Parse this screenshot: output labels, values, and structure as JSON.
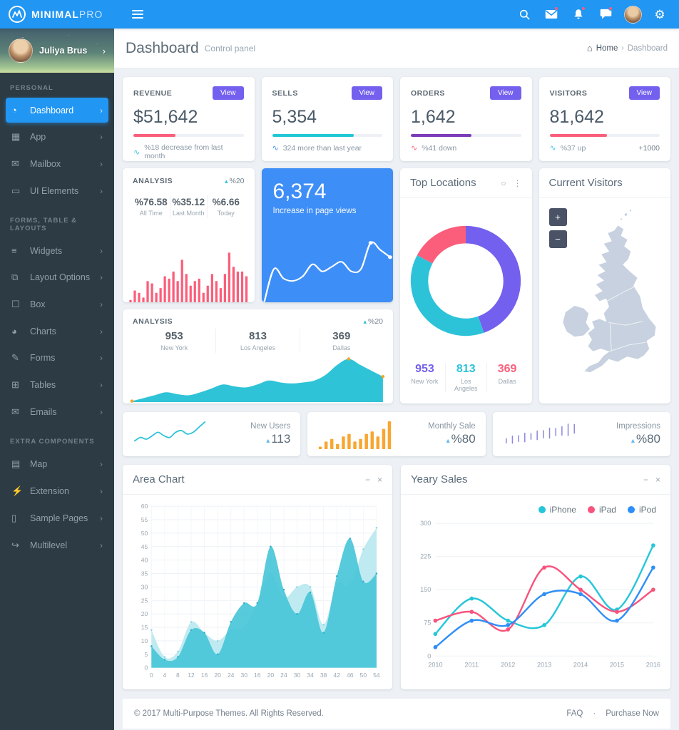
{
  "topbar": {
    "brand_bold": "MINIMAL",
    "brand_light": "PRO"
  },
  "ui": {
    "chevron": "›",
    "caret_up": "▴",
    "trend": "∿",
    "home": "⌂",
    "minimize": "−",
    "close": "×",
    "circle": "○",
    "dots": "⋮",
    "gear": "⚙"
  },
  "sidebar": {
    "user": {
      "name": "Juliya Brus"
    },
    "sections": [
      {
        "label": "PERSONAL",
        "items": [
          {
            "label": "Dashboard",
            "glyph": "◔",
            "active": true
          },
          {
            "label": "App",
            "glyph": "▦"
          },
          {
            "label": "Mailbox",
            "glyph": "✉"
          },
          {
            "label": "UI Elements",
            "glyph": "▭"
          }
        ]
      },
      {
        "label": "FORMS, TABLE & LAYOUTS",
        "items": [
          {
            "label": "Widgets",
            "glyph": "≡"
          },
          {
            "label": "Layout Options",
            "glyph": "⧉"
          },
          {
            "label": "Box",
            "glyph": "☐"
          },
          {
            "label": "Charts",
            "glyph": "◕"
          },
          {
            "label": "Forms",
            "glyph": "✎"
          },
          {
            "label": "Tables",
            "glyph": "⊞"
          },
          {
            "label": "Emails",
            "glyph": "✉"
          }
        ]
      },
      {
        "label": "EXTRA COMPONENTS",
        "items": [
          {
            "label": "Map",
            "glyph": "▤"
          },
          {
            "label": "Extension",
            "glyph": "⚡"
          },
          {
            "label": "Sample Pages",
            "glyph": "▯"
          },
          {
            "label": "Multilevel",
            "glyph": "↪"
          }
        ]
      }
    ]
  },
  "header": {
    "title": "Dashboard",
    "subtitle": "Control panel",
    "breadcrumb": {
      "home": "Home",
      "separator": "›",
      "current": "Dashboard"
    }
  },
  "stat_cards": [
    {
      "title": "REVENUE",
      "action": "View",
      "value": "$51,642",
      "progress": "38%",
      "accent": "#fb5e7a",
      "note": "%18 decrease from last month",
      "note_icon_color": "#3ec6e0",
      "extra": ""
    },
    {
      "title": "SELLS",
      "action": "View",
      "value": "5,354",
      "progress": "74%",
      "accent": "#22c7d5",
      "note": "324 more than last year",
      "note_icon_color": "#3e8ef7",
      "extra": ""
    },
    {
      "title": "ORDERS",
      "action": "View",
      "value": "1,642",
      "progress": "55%",
      "accent": "#7a3cb8",
      "note": "%41 down",
      "note_icon_color": "#fb5e7a",
      "extra": ""
    },
    {
      "title": "VISITORS",
      "action": "View",
      "value": "81,642",
      "progress": "52%",
      "accent": "#fb5e7a",
      "note": "%37 up",
      "note_icon_color": "#3ec6e0",
      "extra": "+1000"
    }
  ],
  "analysis1": {
    "title": "ANALYSIS",
    "badge": "%20",
    "stats": [
      {
        "value": "%76.58",
        "label": "All Time"
      },
      {
        "value": "%35.12",
        "label": "Last Month"
      },
      {
        "value": "%6.66",
        "label": "Today"
      }
    ]
  },
  "page_views": {
    "value": "6,374",
    "label": "Increase in page views",
    "bg": "#3e8ef7"
  },
  "top_locations": {
    "title": "Top Locations",
    "stats": [
      {
        "value": "953",
        "label": "New York",
        "color": "#7460ee"
      },
      {
        "value": "813",
        "label": "Los Angeles",
        "color": "#2cc3d8"
      },
      {
        "value": "369",
        "label": "Dallas",
        "color": "#fb5e7a"
      }
    ]
  },
  "current_visitors": {
    "title": "Current Visitors",
    "zoom_in": "+",
    "zoom_out": "−"
  },
  "analysis2": {
    "title": "ANALYSIS",
    "badge": "%20",
    "stats": [
      {
        "value": "953",
        "label": "New York"
      },
      {
        "value": "813",
        "label": "Los Angeles"
      },
      {
        "value": "369",
        "label": "Dallas"
      }
    ]
  },
  "mini_cards": [
    {
      "label": "New Users",
      "value": "113"
    },
    {
      "label": "Monthly Sale",
      "value": "%80"
    },
    {
      "label": "Impressions",
      "value": "%80"
    }
  ],
  "area_chart_card": {
    "title": "Area Chart"
  },
  "yearly_card": {
    "title": "Yeary Sales",
    "legend": [
      {
        "label": "iPhone",
        "color": "#26c6da"
      },
      {
        "label": "iPad",
        "color": "#f8537c"
      },
      {
        "label": "iPod",
        "color": "#2e8ef7"
      }
    ]
  },
  "footer": {
    "copyright": "© 2017 Multi-Purpose Themes. All Rights Reserved.",
    "faq": "FAQ",
    "dot": "·",
    "purchase": "Purchase Now"
  },
  "chart_data": [
    {
      "id": "analysis_bars",
      "type": "bar",
      "color": "#fb5e7a",
      "values": [
        1,
        5,
        4,
        2,
        9,
        8,
        4,
        6,
        11,
        10,
        13,
        9,
        18,
        12,
        7,
        9,
        10,
        4,
        7,
        12,
        9,
        6,
        12,
        21,
        15,
        13,
        13,
        11
      ],
      "title": "Analysis daily bars",
      "ylim": [
        0,
        22
      ]
    },
    {
      "id": "pageviews_line",
      "type": "line",
      "color": "#ffffff",
      "stroke_width": 2,
      "values": [
        0,
        14,
        10,
        9,
        11,
        16,
        13,
        15,
        17,
        13,
        14,
        25,
        22,
        19
      ],
      "markers": [
        11,
        13
      ],
      "marker_color": "#ffffff",
      "marker_r": 2.6,
      "title": "Increase in page views",
      "ylim": [
        0,
        27
      ]
    },
    {
      "id": "locations_donut",
      "type": "pie",
      "labels": [
        "New York",
        "Los Angeles",
        "Dallas"
      ],
      "values": [
        953,
        813,
        369
      ],
      "colors": [
        "#7460ee",
        "#2cc3d8",
        "#fb5e7a"
      ],
      "donut_width": 26,
      "title": "Top Locations"
    },
    {
      "id": "analysis_area",
      "type": "line",
      "color": "#2fc3d7",
      "stroke": false,
      "fill": true,
      "fill_color": "#2fc3d7",
      "values": [
        0.5,
        2,
        3.5,
        5,
        4,
        3.5,
        5,
        7,
        9,
        8,
        7.5,
        9,
        11,
        10,
        9.5,
        10,
        11,
        14,
        19,
        22,
        19,
        16,
        13
      ],
      "markers": [
        0,
        19,
        22
      ],
      "marker_color": "#f5a623",
      "marker_r": 2.2,
      "title": "Analysis area trend",
      "ylim": [
        0,
        24
      ]
    },
    {
      "id": "newusers_spark",
      "type": "line",
      "color": "#2cc3d8",
      "stroke_width": 1.8,
      "values": [
        4,
        6,
        5,
        7,
        9,
        7,
        6,
        9,
        10,
        8,
        9,
        12,
        15
      ],
      "title": "New Users sparkline"
    },
    {
      "id": "monthly_spark",
      "type": "bar",
      "color": "#f8a632",
      "values": [
        1,
        3,
        4,
        2,
        5,
        6,
        3,
        4,
        6,
        7,
        5,
        8,
        11
      ],
      "title": "Monthly Sale sparkline"
    },
    {
      "id": "impressions_ticks",
      "type": "ticks",
      "color": "#8f88e0",
      "values": [
        3,
        5,
        4,
        6,
        4,
        6,
        5,
        7,
        5,
        6,
        8,
        6
      ],
      "title": "Impressions sparkline"
    },
    {
      "id": "area_chart",
      "type": "area-multi",
      "title": "Area Chart",
      "x_labels": [
        "0",
        "4",
        "8",
        "12",
        "16",
        "20",
        "24",
        "30",
        "16",
        "20",
        "24",
        "30",
        "34",
        "38",
        "42",
        "46",
        "50",
        "54"
      ],
      "y_ticks": [
        0,
        5,
        10,
        15,
        20,
        25,
        30,
        35,
        40,
        45,
        50,
        55,
        60
      ],
      "ymax": 60,
      "grid": true,
      "series": [
        {
          "name": "series-light",
          "color": "#b9e8f0",
          "opacity": 0.9,
          "dot_color": "#8fd9e6",
          "values": [
            14,
            4,
            6,
            17,
            13,
            10,
            14,
            15,
            24,
            35,
            26,
            30,
            30,
            16,
            31,
            31,
            44,
            52
          ]
        },
        {
          "name": "series-dark",
          "color": "#49c5d8",
          "opacity": 0.92,
          "dot_color": "#2fb3c9",
          "values": [
            8,
            3,
            4,
            14,
            13,
            5,
            17,
            24,
            24,
            45,
            29,
            20,
            28,
            13,
            34,
            48,
            32,
            35
          ]
        }
      ]
    },
    {
      "id": "yearly_sales",
      "type": "line-multi",
      "title": "Yeary Sales",
      "x_labels": [
        "2010",
        "2011",
        "2012",
        "2013",
        "2014",
        "2015",
        "2016"
      ],
      "y_ticks": [
        0,
        75,
        150,
        225,
        300
      ],
      "ymax": 300,
      "grid": true,
      "legend_position": "top-right",
      "series": [
        {
          "name": "iPhone",
          "color": "#26c6da",
          "values": [
            50,
            130,
            80,
            70,
            180,
            105,
            250
          ]
        },
        {
          "name": "iPad",
          "color": "#f8537c",
          "values": [
            80,
            100,
            60,
            200,
            150,
            100,
            150
          ]
        },
        {
          "name": "iPod",
          "color": "#2e8ef7",
          "values": [
            20,
            80,
            70,
            140,
            140,
            80,
            200
          ]
        }
      ]
    }
  ]
}
